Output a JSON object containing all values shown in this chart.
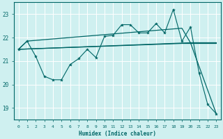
{
  "xlabel": "Humidex (Indice chaleur)",
  "bg_color": "#cff0f0",
  "grid_color": "#ffffff",
  "line_color": "#006666",
  "xlim": [
    -0.5,
    23.5
  ],
  "ylim": [
    18.5,
    23.5
  ],
  "yticks": [
    19,
    20,
    21,
    22,
    23
  ],
  "xticks": [
    0,
    1,
    2,
    3,
    4,
    5,
    6,
    7,
    8,
    9,
    10,
    11,
    12,
    13,
    14,
    15,
    16,
    17,
    18,
    19,
    20,
    21,
    22,
    23
  ],
  "jagged_x": [
    0,
    1,
    2,
    3,
    4,
    5,
    6,
    7,
    8,
    9,
    10,
    11,
    12,
    13,
    14,
    15,
    16,
    17,
    18,
    19,
    20,
    21,
    22,
    23
  ],
  "jagged_y": [
    21.5,
    21.85,
    21.2,
    20.35,
    20.2,
    20.2,
    20.85,
    21.1,
    21.5,
    21.15,
    22.05,
    22.1,
    22.55,
    22.55,
    22.2,
    22.2,
    22.6,
    22.2,
    23.2,
    21.85,
    22.45,
    20.5,
    19.15,
    18.75
  ],
  "line1_x": [
    0,
    19,
    20,
    23
  ],
  "line1_y": [
    21.5,
    21.75,
    21.75,
    21.75
  ],
  "line2_x": [
    0,
    20,
    23
  ],
  "line2_y": [
    21.5,
    21.78,
    18.75
  ],
  "line3_x": [
    0,
    1,
    19,
    20,
    23
  ],
  "line3_y": [
    21.5,
    21.85,
    22.4,
    21.78,
    21.78
  ]
}
